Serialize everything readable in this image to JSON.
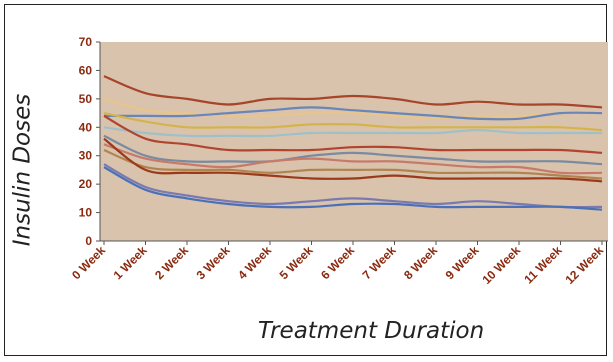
{
  "chart_data": {
    "type": "line",
    "title": "",
    "ylabel": "Insulin Doses",
    "xlabel": "Treatment Duration",
    "ylim": [
      0,
      70
    ],
    "yticks": [
      0,
      10,
      20,
      30,
      40,
      50,
      60,
      70
    ],
    "grid": false,
    "legend": "none",
    "plot_background": "#d9c3ad",
    "categories": [
      "0 Week",
      "1 Week",
      "2 Week",
      "3 Week",
      "4 Week",
      "5 Week",
      "6 Week",
      "7 Week",
      "8 Week",
      "9 Week",
      "10 Week",
      "11 Week",
      "12 Week"
    ],
    "series": [
      {
        "color": "#a8442a",
        "values": [
          58,
          52,
          50,
          48,
          50,
          50,
          51,
          50,
          48,
          49,
          48,
          48,
          47
        ]
      },
      {
        "color": "#e8c58a",
        "values": [
          50,
          46,
          45,
          44,
          44,
          45,
          45,
          44,
          43,
          44,
          44,
          45,
          45
        ]
      },
      {
        "color": "#6a86b8",
        "values": [
          44,
          44,
          44,
          45,
          46,
          47,
          46,
          45,
          44,
          43,
          43,
          45,
          45
        ]
      },
      {
        "color": "#d4b44a",
        "values": [
          45,
          42,
          40,
          40,
          40,
          41,
          41,
          40,
          40,
          40,
          40,
          40,
          39
        ]
      },
      {
        "color": "#9fc0c8",
        "values": [
          40,
          38,
          37,
          37,
          37,
          38,
          38,
          38,
          38,
          39,
          38,
          38,
          38
        ]
      },
      {
        "color": "#b04430",
        "values": [
          44,
          36,
          34,
          32,
          32,
          32,
          33,
          33,
          32,
          32,
          32,
          32,
          31
        ]
      },
      {
        "color": "#7a8aa0",
        "values": [
          37,
          30,
          28,
          28,
          28,
          30,
          31,
          30,
          29,
          28,
          28,
          28,
          27
        ]
      },
      {
        "color": "#c87a6a",
        "values": [
          34,
          29,
          27,
          26,
          28,
          29,
          28,
          28,
          27,
          26,
          26,
          24,
          24
        ]
      },
      {
        "color": "#b08450",
        "values": [
          32,
          26,
          25,
          25,
          24,
          25,
          25,
          25,
          24,
          24,
          24,
          23,
          22
        ]
      },
      {
        "color": "#9a3a1a",
        "values": [
          36,
          25,
          24,
          24,
          23,
          22,
          22,
          23,
          22,
          22,
          22,
          22,
          21
        ]
      },
      {
        "color": "#7a7ab0",
        "values": [
          27,
          19,
          16,
          14,
          13,
          14,
          15,
          14,
          13,
          14,
          13,
          12,
          12
        ]
      },
      {
        "color": "#4a70b8",
        "values": [
          26,
          18,
          15,
          13,
          12,
          12,
          13,
          13,
          12,
          12,
          12,
          12,
          11
        ]
      }
    ]
  }
}
